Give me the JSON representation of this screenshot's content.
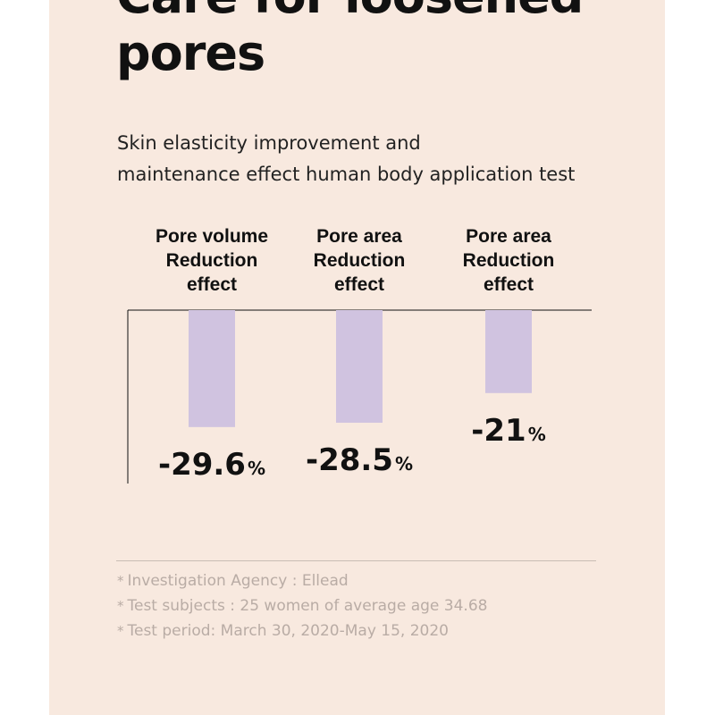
{
  "title_lines": [
    "Care for loosened",
    "pores"
  ],
  "subtitle_lines": [
    "Skin elasticity improvement and",
    "maintenance effect human body application test"
  ],
  "colors": {
    "background": "#f8e9df",
    "bar": "#d0c3e0",
    "text": "#111111",
    "note_text": "#b9aca5"
  },
  "chart_data": {
    "type": "bar",
    "categories": [
      [
        "Pore volume",
        "Reduction",
        "effect"
      ],
      [
        "Pore area",
        "Reduction",
        "effect"
      ],
      [
        "Pore area",
        "Reduction",
        "effect"
      ]
    ],
    "values": [
      -29.6,
      -28.5,
      -21
    ],
    "value_labels": [
      "-29.6",
      "-28.5",
      "-21"
    ],
    "unit": "%",
    "orientation": "downward from baseline",
    "grid": false,
    "legend": "none"
  },
  "notes": [
    "Investigation Agency : Ellead",
    "Test subjects : 25 women of average age 34.68",
    "Test period: March 30, 2020-May 15, 2020"
  ],
  "note_marker": "*"
}
